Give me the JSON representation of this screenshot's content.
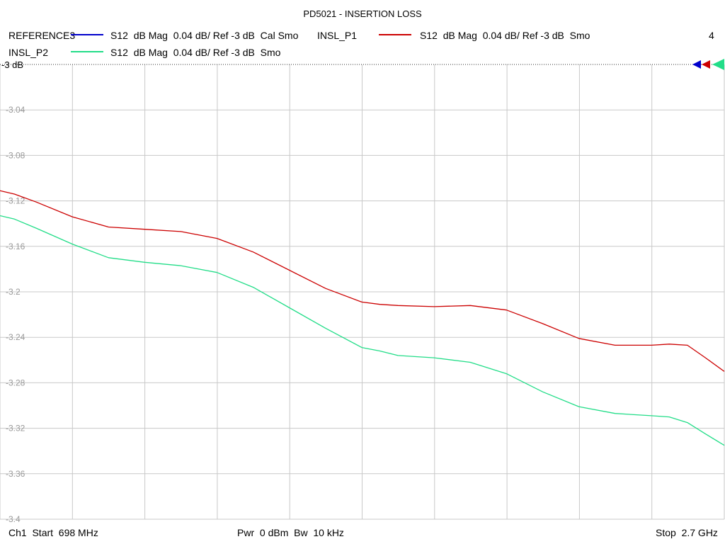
{
  "header": {
    "title": "PD5021 - INSERTION LOSS",
    "channel_count": "4"
  },
  "legend": [
    {
      "name": "REFERENCE3",
      "desc": "S12  dB Mag  0.04 dB/ Ref -3 dB  Cal Smo",
      "color": "#0000cc"
    },
    {
      "name": "INSL_P1",
      "desc": "S12  dB Mag  0.04 dB/ Ref -3 dB  Smo",
      "color": "#cc0000"
    },
    {
      "name": "INSL_P2",
      "desc": "S12  dB Mag  0.04 dB/ Ref -3 dB  Smo",
      "color": "#22dd88"
    }
  ],
  "footer": {
    "start": "Ch1  Start  698 MHz",
    "power": "Pwr  0 dBm  Bw  10 kHz",
    "stop": "Stop  2.7 GHz"
  },
  "chart_data": {
    "type": "line",
    "title": "PD5021 - INSERTION LOSS",
    "xlabel": "",
    "ylabel": "",
    "xlim": [
      698,
      2700
    ],
    "x_unit": "MHz",
    "ylim": [
      -3.4,
      -3.0
    ],
    "ref_label": "-3 dB",
    "yticks": [
      "-3.04",
      "-3.08",
      "-3.12",
      "-3.16",
      "-3.2",
      "-3.24",
      "-3.28",
      "-3.32",
      "-3.36",
      "-3.4"
    ],
    "grid": true,
    "series": [
      {
        "name": "INSL_P1",
        "color": "#cc0000",
        "x": [
          698,
          738,
          798,
          898,
          998,
          1098,
          1198,
          1298,
          1398,
          1498,
          1598,
          1698,
          1748,
          1798,
          1898,
          1998,
          2098,
          2198,
          2298,
          2398,
          2498,
          2548,
          2598,
          2648,
          2700
        ],
        "y": [
          -3.111,
          -3.114,
          -3.121,
          -3.134,
          -3.143,
          -3.145,
          -3.147,
          -3.153,
          -3.165,
          -3.181,
          -3.197,
          -3.209,
          -3.211,
          -3.212,
          -3.213,
          -3.212,
          -3.216,
          -3.228,
          -3.241,
          -3.247,
          -3.247,
          -3.246,
          -3.247,
          -3.258,
          -3.27
        ]
      },
      {
        "name": "INSL_P2",
        "color": "#22dd88",
        "x": [
          698,
          738,
          798,
          898,
          998,
          1098,
          1198,
          1298,
          1398,
          1498,
          1598,
          1698,
          1748,
          1798,
          1898,
          1998,
          2098,
          2198,
          2298,
          2398,
          2498,
          2548,
          2598,
          2648,
          2700
        ],
        "y": [
          -3.133,
          -3.136,
          -3.144,
          -3.158,
          -3.17,
          -3.174,
          -3.177,
          -3.183,
          -3.196,
          -3.214,
          -3.232,
          -3.249,
          -3.252,
          -3.256,
          -3.258,
          -3.262,
          -3.272,
          -3.288,
          -3.301,
          -3.307,
          -3.309,
          -3.31,
          -3.315,
          -3.325,
          -3.335
        ]
      }
    ]
  }
}
